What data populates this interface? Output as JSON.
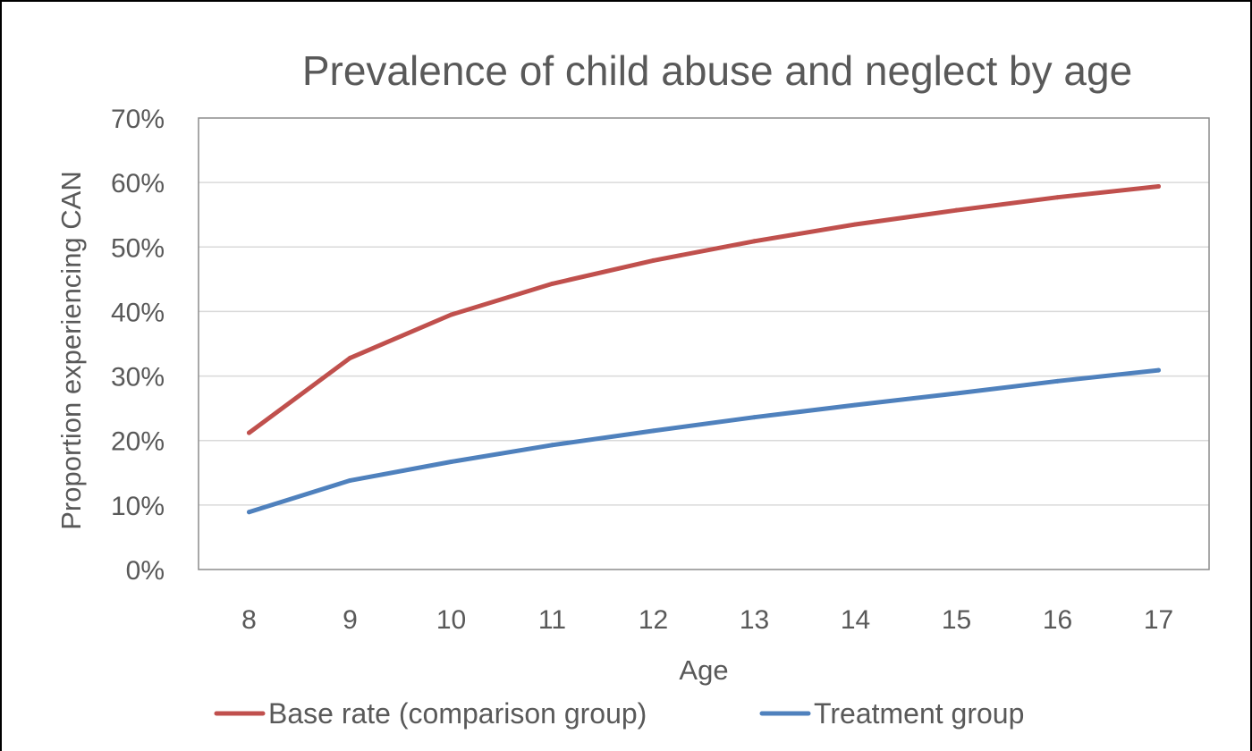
{
  "chart_data": {
    "type": "line",
    "title": "Prevalence of child abuse and neglect by age",
    "xlabel": "Age",
    "ylabel": "Proportion experiencing CAN",
    "x": [
      "8",
      "9",
      "10",
      "11",
      "12",
      "13",
      "14",
      "15",
      "16",
      "17"
    ],
    "ylim": [
      0,
      70
    ],
    "yticks": [
      "0%",
      "10%",
      "20%",
      "30%",
      "40%",
      "50%",
      "60%",
      "70%"
    ],
    "ytick_values": [
      0,
      10,
      20,
      30,
      40,
      50,
      60,
      70
    ],
    "grid": true,
    "legend_position": "bottom",
    "series": [
      {
        "name": "Base rate (comparison group)",
        "color": "#C0504D",
        "values": [
          21.2,
          32.8,
          39.5,
          44.3,
          47.9,
          50.9,
          53.5,
          55.7,
          57.7,
          59.4
        ]
      },
      {
        "name": "Treatment group",
        "color": "#4F81BD",
        "values": [
          8.9,
          13.8,
          16.7,
          19.3,
          21.5,
          23.6,
          25.5,
          27.3,
          29.2,
          30.9
        ]
      }
    ]
  }
}
